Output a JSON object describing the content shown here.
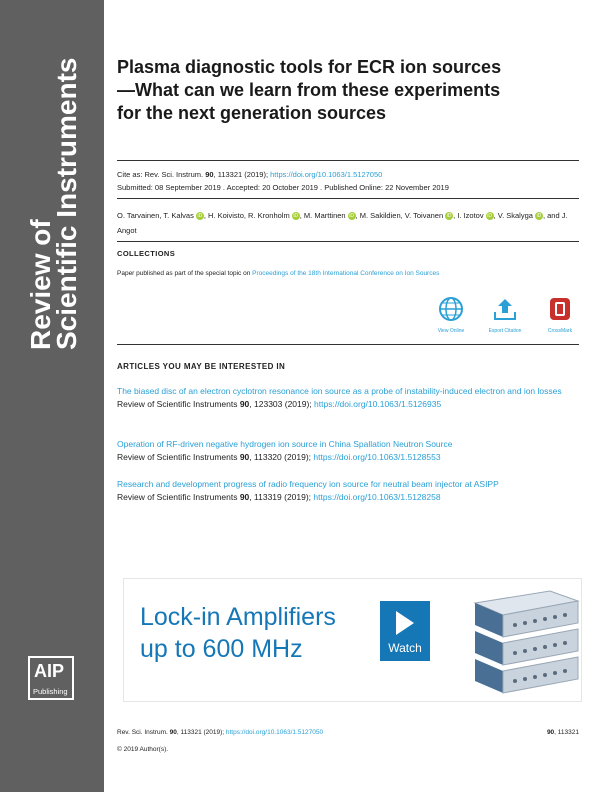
{
  "sidebar": {
    "journal_line1": "Review of",
    "journal_line2": "Scientific Instruments",
    "logo_main": "AIP",
    "logo_sub": "Publishing"
  },
  "title": "Plasma diagnostic tools for ECR ion sources—What can we learn from these experiments for the next generation sources",
  "cite": {
    "label": "Cite as: Rev. Sci. Instrum. ",
    "volume": "90",
    "rest": ", 113321 (2019); ",
    "doi": "https://doi.org/10.1063/1.5127050"
  },
  "dates": "Submitted: 08 September 2019 . Accepted: 20 October 2019 . Published Online: 22 November 2019",
  "authors": {
    "a1": "O. Tarvainen, T. Kalvas",
    "a2": ", H. Koivisto, R. Kronholm",
    "a3": ", M. Marttinen",
    "a4": ", M. Sakildien, V. Toivanen",
    "a5": ", I. Izotov",
    "a6": ", V. Skalyga",
    "a7": ", and J. Angot"
  },
  "collections": {
    "heading": "COLLECTIONS",
    "text": "Paper published as part of the special topic on ",
    "link": "Proceedings of the 18th International Conference on Ion Sources"
  },
  "tools": [
    {
      "label": "View Online",
      "icon": "globe-icon"
    },
    {
      "label": "Export Citation",
      "icon": "export-icon"
    },
    {
      "label": "CrossMark",
      "icon": "crossmark-icon"
    }
  ],
  "related": {
    "heading": "ARTICLES YOU MAY BE INTERESTED IN",
    "items": [
      {
        "title": "The biased disc of an electron cyclotron resonance ion source as a probe of instability-induced electron and ion losses",
        "journal": "Review of Scientific Instruments ",
        "vol": "90",
        "rest": ", 123303 (2019); ",
        "doi": "https://doi.org/10.1063/1.5126935"
      },
      {
        "title": "Operation of RF-driven negative hydrogen ion source in China Spallation Neutron Source",
        "journal": "Review of Scientific Instruments ",
        "vol": "90",
        "rest": ", 113320 (2019); ",
        "doi": "https://doi.org/10.1063/1.5128553"
      },
      {
        "title": "Research and development progress of radio frequency ion source for neutral beam injector at ASIPP",
        "journal": "Review of Scientific Instruments ",
        "vol": "90",
        "rest": ", 113319 (2019); ",
        "doi": "https://doi.org/10.1063/1.5128258"
      }
    ]
  },
  "ad": {
    "line1": "Lock-in Amplifiers",
    "line2": "up to 600 MHz",
    "button": "Watch"
  },
  "footer": {
    "left_prefix": "Rev. Sci. Instrum. ",
    "vol": "90",
    "left_rest": ", 113321 (2019); ",
    "doi": "https://doi.org/10.1063/1.5127050",
    "right_vol": "90",
    "right_rest": ", 113321",
    "copyright": "© 2019 Author(s)."
  },
  "colors": {
    "sidebar": "#606060",
    "link": "#2aa0d6",
    "ad_blue": "#1677b7"
  }
}
